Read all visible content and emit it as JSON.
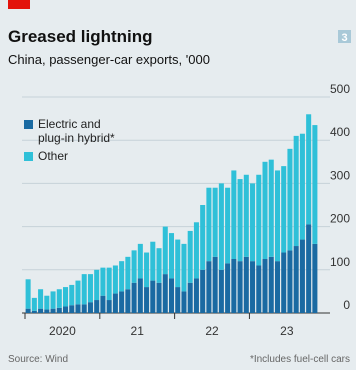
{
  "chart_data": {
    "type": "stacked-bar",
    "title": "Greased lightning",
    "subtitle": "China, passenger-car exports, '000",
    "panel_number": "3",
    "source": "Source: Wind",
    "footnote": "*Includes fuel-cell cars",
    "categories": [
      null,
      null,
      null,
      null,
      null,
      null,
      "2020",
      null,
      null,
      null,
      null,
      null,
      null,
      null,
      null,
      null,
      null,
      null,
      "21",
      null,
      null,
      null,
      null,
      null,
      null,
      null,
      null,
      null,
      null,
      null,
      "22",
      null,
      null,
      null,
      null,
      null,
      null,
      null,
      null,
      null,
      null,
      null,
      "23",
      null,
      null,
      null,
      null
    ],
    "series": [
      {
        "name": "Electric and plug-in hybrid*",
        "color": "#1a6aa2",
        "values": [
          10,
          5,
          10,
          8,
          10,
          12,
          15,
          18,
          20,
          20,
          25,
          30,
          40,
          30,
          45,
          50,
          55,
          70,
          80,
          60,
          75,
          70,
          90,
          80,
          60,
          50,
          70,
          80,
          100,
          120,
          130,
          100,
          115,
          125,
          120,
          130,
          120,
          110,
          125,
          130,
          120,
          140,
          145,
          155,
          170,
          205,
          160
        ]
      },
      {
        "name": "Other",
        "color": "#2fc0d8",
        "values": [
          68,
          30,
          45,
          32,
          40,
          43,
          45,
          47,
          55,
          70,
          65,
          70,
          65,
          75,
          65,
          70,
          75,
          75,
          80,
          80,
          90,
          80,
          110,
          105,
          110,
          110,
          120,
          130,
          150,
          170,
          160,
          200,
          175,
          205,
          190,
          190,
          180,
          210,
          225,
          225,
          210,
          200,
          235,
          255,
          245,
          255,
          275
        ]
      }
    ],
    "ylim": [
      0,
      500
    ],
    "yticks": [
      0,
      100,
      200,
      300,
      400,
      500
    ],
    "grid": true
  }
}
